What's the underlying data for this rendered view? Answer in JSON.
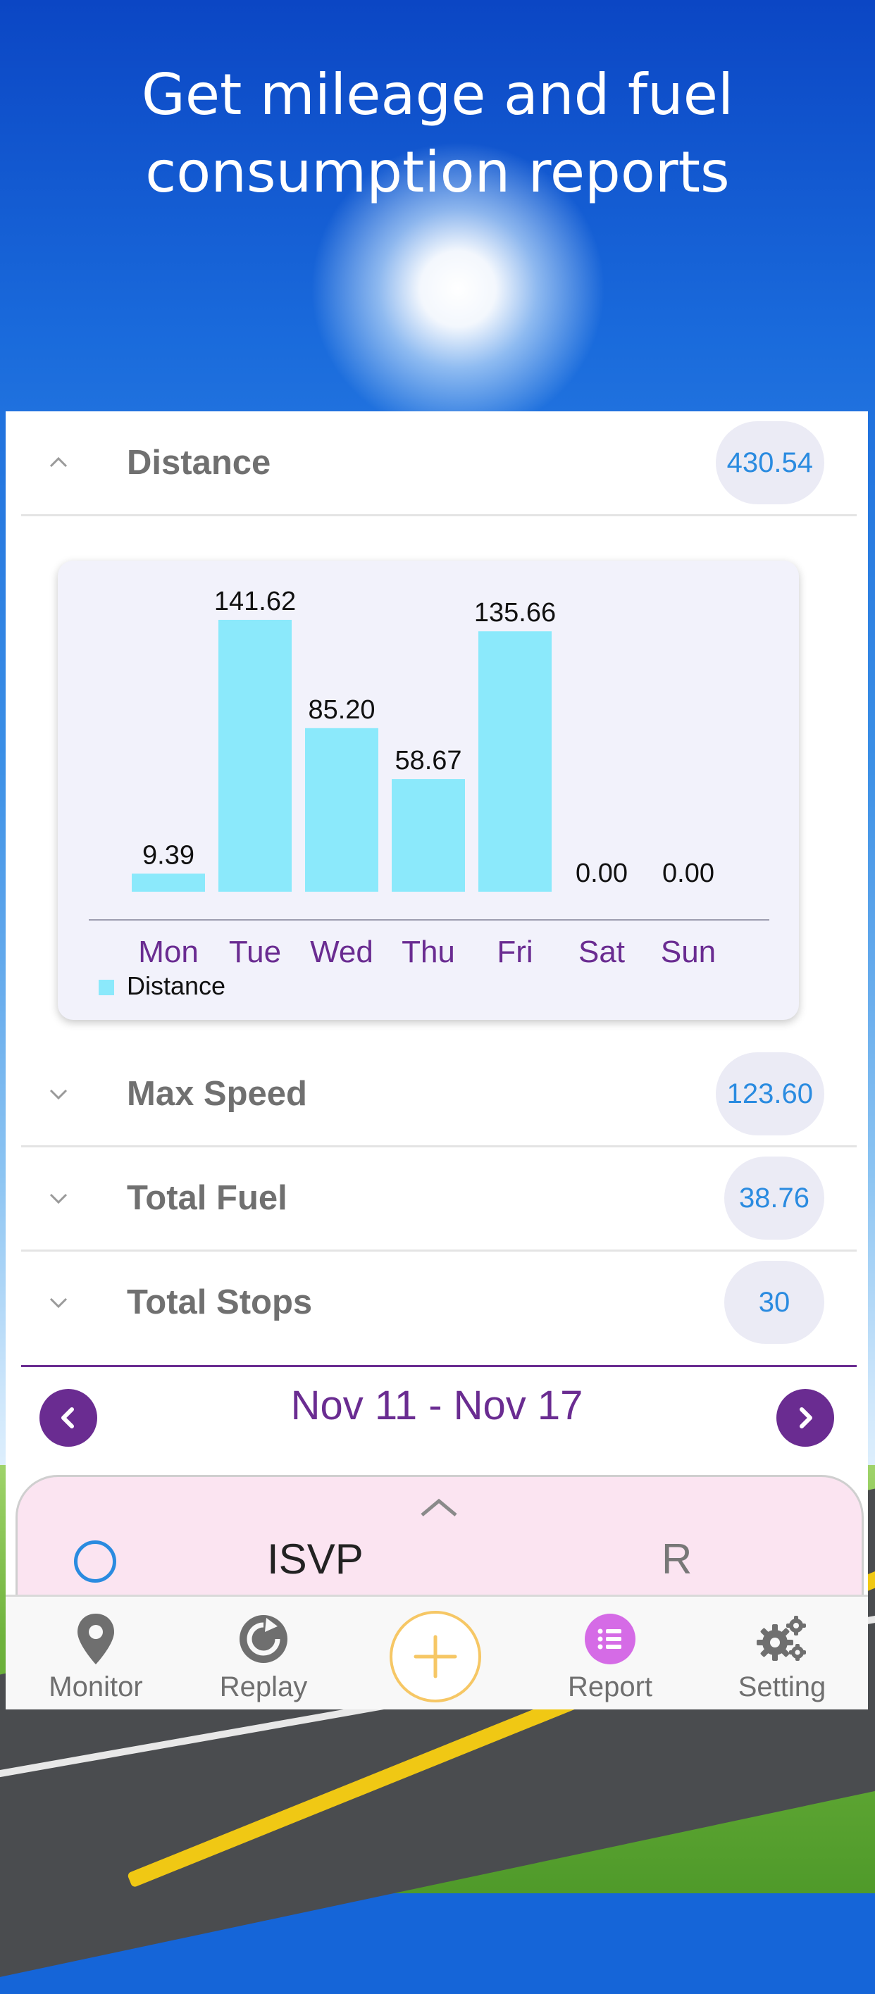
{
  "headline": {
    "line1": "Get mileage and fuel",
    "line2": "consumption reports"
  },
  "sections": {
    "distance": {
      "label": "Distance",
      "value": "430.54"
    },
    "max_speed": {
      "label": "Max Speed",
      "value": "123.60"
    },
    "total_fuel": {
      "label": "Total Fuel",
      "value": "38.76"
    },
    "total_stops": {
      "label": "Total Stops",
      "value": "30"
    }
  },
  "chart_data": {
    "type": "bar",
    "categories": [
      "Mon",
      "Tue",
      "Wed",
      "Thu",
      "Fri",
      "Sat",
      "Sun"
    ],
    "series": [
      {
        "name": "Distance",
        "values": [
          9.39,
          141.62,
          85.2,
          58.67,
          135.66,
          0.0,
          0.0
        ]
      }
    ],
    "value_labels": [
      "9.39",
      "141.62",
      "85.20",
      "58.67",
      "135.66",
      "0.00",
      "0.00"
    ],
    "legend": "bottom-left",
    "grid": false,
    "colors": {
      "bar": "#8be9fb",
      "category_label": "#6a2c91"
    }
  },
  "date_range": "Nov 11 - Nov 17",
  "drawer": {
    "vehicle_name": "ISVP",
    "right_text": "R"
  },
  "tabbar": {
    "monitor": "Monitor",
    "replay": "Replay",
    "report": "Report",
    "setting": "Setting"
  },
  "colors": {
    "accent": "#6a2c91",
    "value_text": "#2a8be0",
    "fab_ring": "#f6c765",
    "report_icon": "#d56be6"
  }
}
